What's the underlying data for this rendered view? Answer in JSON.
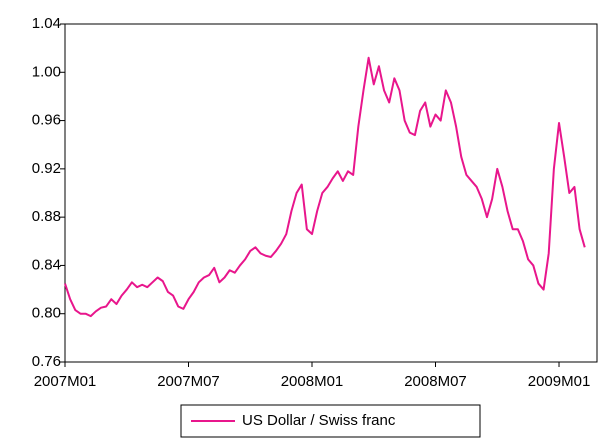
{
  "chart_data": {
    "type": "line",
    "categories": [
      "2007M01",
      null,
      null,
      null,
      null,
      null,
      null,
      null,
      null,
      null,
      null,
      null,
      null,
      null,
      null,
      null,
      null,
      null,
      null,
      null,
      null,
      null,
      null,
      null,
      "2007M07",
      null,
      null,
      null,
      null,
      null,
      null,
      null,
      null,
      null,
      null,
      null,
      null,
      null,
      null,
      null,
      null,
      null,
      null,
      null,
      null,
      null,
      null,
      null,
      "2008M01",
      null,
      null,
      null,
      null,
      null,
      null,
      null,
      null,
      null,
      null,
      null,
      null,
      null,
      null,
      null,
      null,
      null,
      null,
      null,
      null,
      null,
      null,
      null,
      "2008M07",
      null,
      null,
      null,
      null,
      null,
      null,
      null,
      null,
      null,
      null,
      null,
      null,
      null,
      null,
      null,
      null,
      null,
      null,
      null,
      null,
      null,
      null,
      null,
      "2009M01",
      null,
      null,
      null,
      null,
      null
    ],
    "series": [
      {
        "name": "US Dollar / Swiss franc",
        "color": "#e8168c",
        "values": [
          0.825,
          0.812,
          0.803,
          0.8,
          0.8,
          0.798,
          0.802,
          0.805,
          0.806,
          0.812,
          0.808,
          0.815,
          0.82,
          0.826,
          0.822,
          0.824,
          0.822,
          0.826,
          0.83,
          0.827,
          0.818,
          0.815,
          0.806,
          0.804,
          0.812,
          0.818,
          0.826,
          0.83,
          0.832,
          0.838,
          0.826,
          0.83,
          0.836,
          0.834,
          0.84,
          0.845,
          0.852,
          0.855,
          0.85,
          0.848,
          0.847,
          0.852,
          0.858,
          0.866,
          0.885,
          0.9,
          0.907,
          0.87,
          0.866,
          0.885,
          0.9,
          0.905,
          0.912,
          0.918,
          0.91,
          0.918,
          0.915,
          0.955,
          0.985,
          1.012,
          0.99,
          1.005,
          0.985,
          0.975,
          0.995,
          0.985,
          0.96,
          0.95,
          0.948,
          0.968,
          0.975,
          0.955,
          0.965,
          0.96,
          0.985,
          0.975,
          0.955,
          0.93,
          0.915,
          0.91,
          0.905,
          0.895,
          0.88,
          0.895,
          0.92,
          0.905,
          0.885,
          0.87,
          0.87,
          0.86,
          0.845,
          0.84,
          0.825,
          0.82,
          0.85,
          0.92,
          0.958,
          0.93,
          0.9,
          0.905,
          0.87,
          0.855
        ]
      }
    ],
    "ylim": [
      0.76,
      1.04
    ],
    "yticks": [
      0.76,
      {
        "value": 0.8,
        "label": "0.80"
      },
      0.84,
      0.88,
      0.92,
      0.96,
      {
        "value": 1.0,
        "label": "1.00"
      },
      1.04
    ],
    "grid": false,
    "legend": "bottom"
  }
}
